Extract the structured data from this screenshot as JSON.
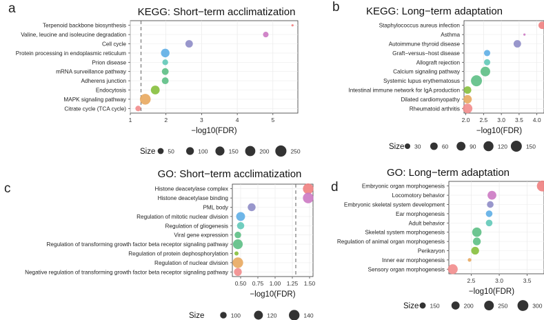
{
  "chart_data": [
    {
      "panel_label": "a",
      "type": "scatter",
      "title": "KEGG: Short−term acclimatization",
      "xlabel": "−log10(FDR)",
      "ylabel": "",
      "xlim": [
        1,
        5.7
      ],
      "xticks": [
        1,
        2,
        3,
        4,
        5
      ],
      "xtick_labels": [
        "1",
        "2",
        "3",
        "4",
        "5"
      ],
      "threshold": 1.3,
      "size_range": [
        5,
        260
      ],
      "categories": [
        "Terpenoid backbone biosynthesis",
        "Valine, leucine and isoleucine degradation",
        "Cell cycle",
        "Protein processing in endoplasmic reticulum",
        "Prion disease",
        "mRNA surveillance pathway",
        "Adherens junction",
        "Endocytosis",
        "MAPK signaling pathway",
        "Citrate cycle (TCA cycle)"
      ],
      "values": [
        5.55,
        4.8,
        2.65,
        1.98,
        1.98,
        1.98,
        1.98,
        1.7,
        1.42,
        1.22
      ],
      "sizes": [
        5,
        40,
        90,
        130,
        45,
        70,
        70,
        140,
        230,
        40
      ],
      "colors": [
        "#f08080",
        "#cc79c3",
        "#8e8cc7",
        "#5eaee6",
        "#62c9b8",
        "#5dbf85",
        "#5dbf85",
        "#86bf3c",
        "#e8a85f",
        "#f28c8c"
      ],
      "legend_title": "Size",
      "legend_values": [
        50,
        100,
        150,
        200,
        250
      ],
      "legend_labels": [
        "50",
        "100",
        "150",
        "200",
        "250"
      ]
    },
    {
      "panel_label": "b",
      "type": "scatter",
      "title": "KEGG: Long−term adaptation",
      "xlabel": "−log10(FDR)",
      "ylabel": "",
      "xlim": [
        1.95,
        4.2
      ],
      "xticks": [
        2.0,
        2.5,
        3.0,
        3.5,
        4.0
      ],
      "xtick_labels": [
        "2.0",
        "2.5",
        "3.0",
        "3.5",
        "4.0"
      ],
      "threshold": null,
      "size_range": [
        10,
        160
      ],
      "categories": [
        "Staphylococcus aureus infection",
        "Asthma",
        "Autoimmune thyroid disease",
        "Graft−versus−host disease",
        "Allograft rejection",
        "Calcium signaling pathway",
        "Systemic lupus erythematosus",
        "Intestinal immune network for IgA production",
        "Dilated cardiomyopathy",
        "Rheumatoid arthritis"
      ],
      "values": [
        4.15,
        3.65,
        3.45,
        2.6,
        2.6,
        2.55,
        2.3,
        2.05,
        2.05,
        2.05
      ],
      "sizes": [
        60,
        10,
        60,
        40,
        40,
        110,
        150,
        60,
        80,
        110
      ],
      "colors": [
        "#f08080",
        "#cc79c3",
        "#8e8cc7",
        "#5eaee6",
        "#62c9b8",
        "#5dbf85",
        "#5dbf85",
        "#86bf3c",
        "#e8a85f",
        "#f28c8c"
      ],
      "legend_title": "Size",
      "legend_values": [
        30,
        60,
        90,
        120,
        150
      ],
      "legend_labels": [
        "30",
        "60",
        "90",
        "120",
        "150"
      ]
    },
    {
      "panel_label": "c",
      "type": "scatter",
      "title": "GO: Short−term acclimatization",
      "xlabel": "−log10(FDR)",
      "ylabel": "",
      "xlim": [
        0.38,
        1.55
      ],
      "xticks": [
        0.5,
        0.75,
        1.0,
        1.25,
        1.5
      ],
      "xtick_labels": [
        "0.50",
        "0.75",
        "1.00",
        "1.25",
        "1.50"
      ],
      "threshold": 1.3,
      "size_range": [
        85,
        150
      ],
      "categories": [
        "Histone deacetylase complex",
        "Histone deacetylase binding",
        "PML body",
        "Regulation of mitotic nuclear division",
        "Regulation of gliogenesis",
        "Viral gene expression",
        "Regulation of transforming growth factor beta receptor signaling pathway",
        "Regulation of protein dephosphorylation",
        "Regulation of nuclear division",
        "Negative regulation of transforming growth factor beta receptor signaling pathway"
      ],
      "values": [
        1.48,
        1.48,
        0.66,
        0.5,
        0.5,
        0.46,
        0.46,
        0.44,
        0.46,
        0.46
      ],
      "sizes": [
        140,
        140,
        110,
        120,
        105,
        100,
        130,
        88,
        140,
        110
      ],
      "colors": [
        "#f08080",
        "#cc79c3",
        "#8e8cc7",
        "#5eaee6",
        "#62c9b8",
        "#5dbf85",
        "#5dbf85",
        "#86bf3c",
        "#e8a85f",
        "#f28c8c"
      ],
      "legend_title": "Size",
      "legend_values": [
        100,
        120,
        140
      ],
      "legend_labels": [
        "100",
        "120",
        "140"
      ]
    },
    {
      "panel_label": "d",
      "type": "scatter",
      "title": "GO: Long−term adaptation",
      "xlabel": "−log10(FDR)",
      "ylabel": "",
      "xlim": [
        2.1,
        3.8
      ],
      "xticks": [
        2.5,
        3.0,
        3.5
      ],
      "xtick_labels": [
        "2.5",
        "3.0",
        "3.5"
      ],
      "threshold": null,
      "size_range": [
        110,
        320
      ],
      "categories": [
        "Embryonic organ morphogenesis",
        "Locomotory behavior",
        "Embryonic skeletal system development",
        "Ear morphogenesis",
        "Adult behavior",
        "Skeletal system morphogenesis",
        "Regulation of animal organ morphogenesis",
        "Perikaryon",
        "Inner ear morphogenesis",
        "Sensory organ morphogenesis"
      ],
      "values": [
        3.77,
        2.87,
        2.84,
        2.82,
        2.82,
        2.6,
        2.6,
        2.57,
        2.47,
        2.17
      ],
      "sizes": [
        300,
        220,
        160,
        160,
        160,
        240,
        190,
        190,
        115,
        260
      ],
      "colors": [
        "#f08080",
        "#cc79c3",
        "#8e8cc7",
        "#5eaee6",
        "#62c9b8",
        "#5dbf85",
        "#5dbf85",
        "#86bf3c",
        "#e8a85f",
        "#f28c8c"
      ],
      "legend_title": "Size",
      "legend_values": [
        150,
        200,
        250,
        300
      ],
      "legend_labels": [
        "150",
        "200",
        "250",
        "300"
      ]
    }
  ]
}
